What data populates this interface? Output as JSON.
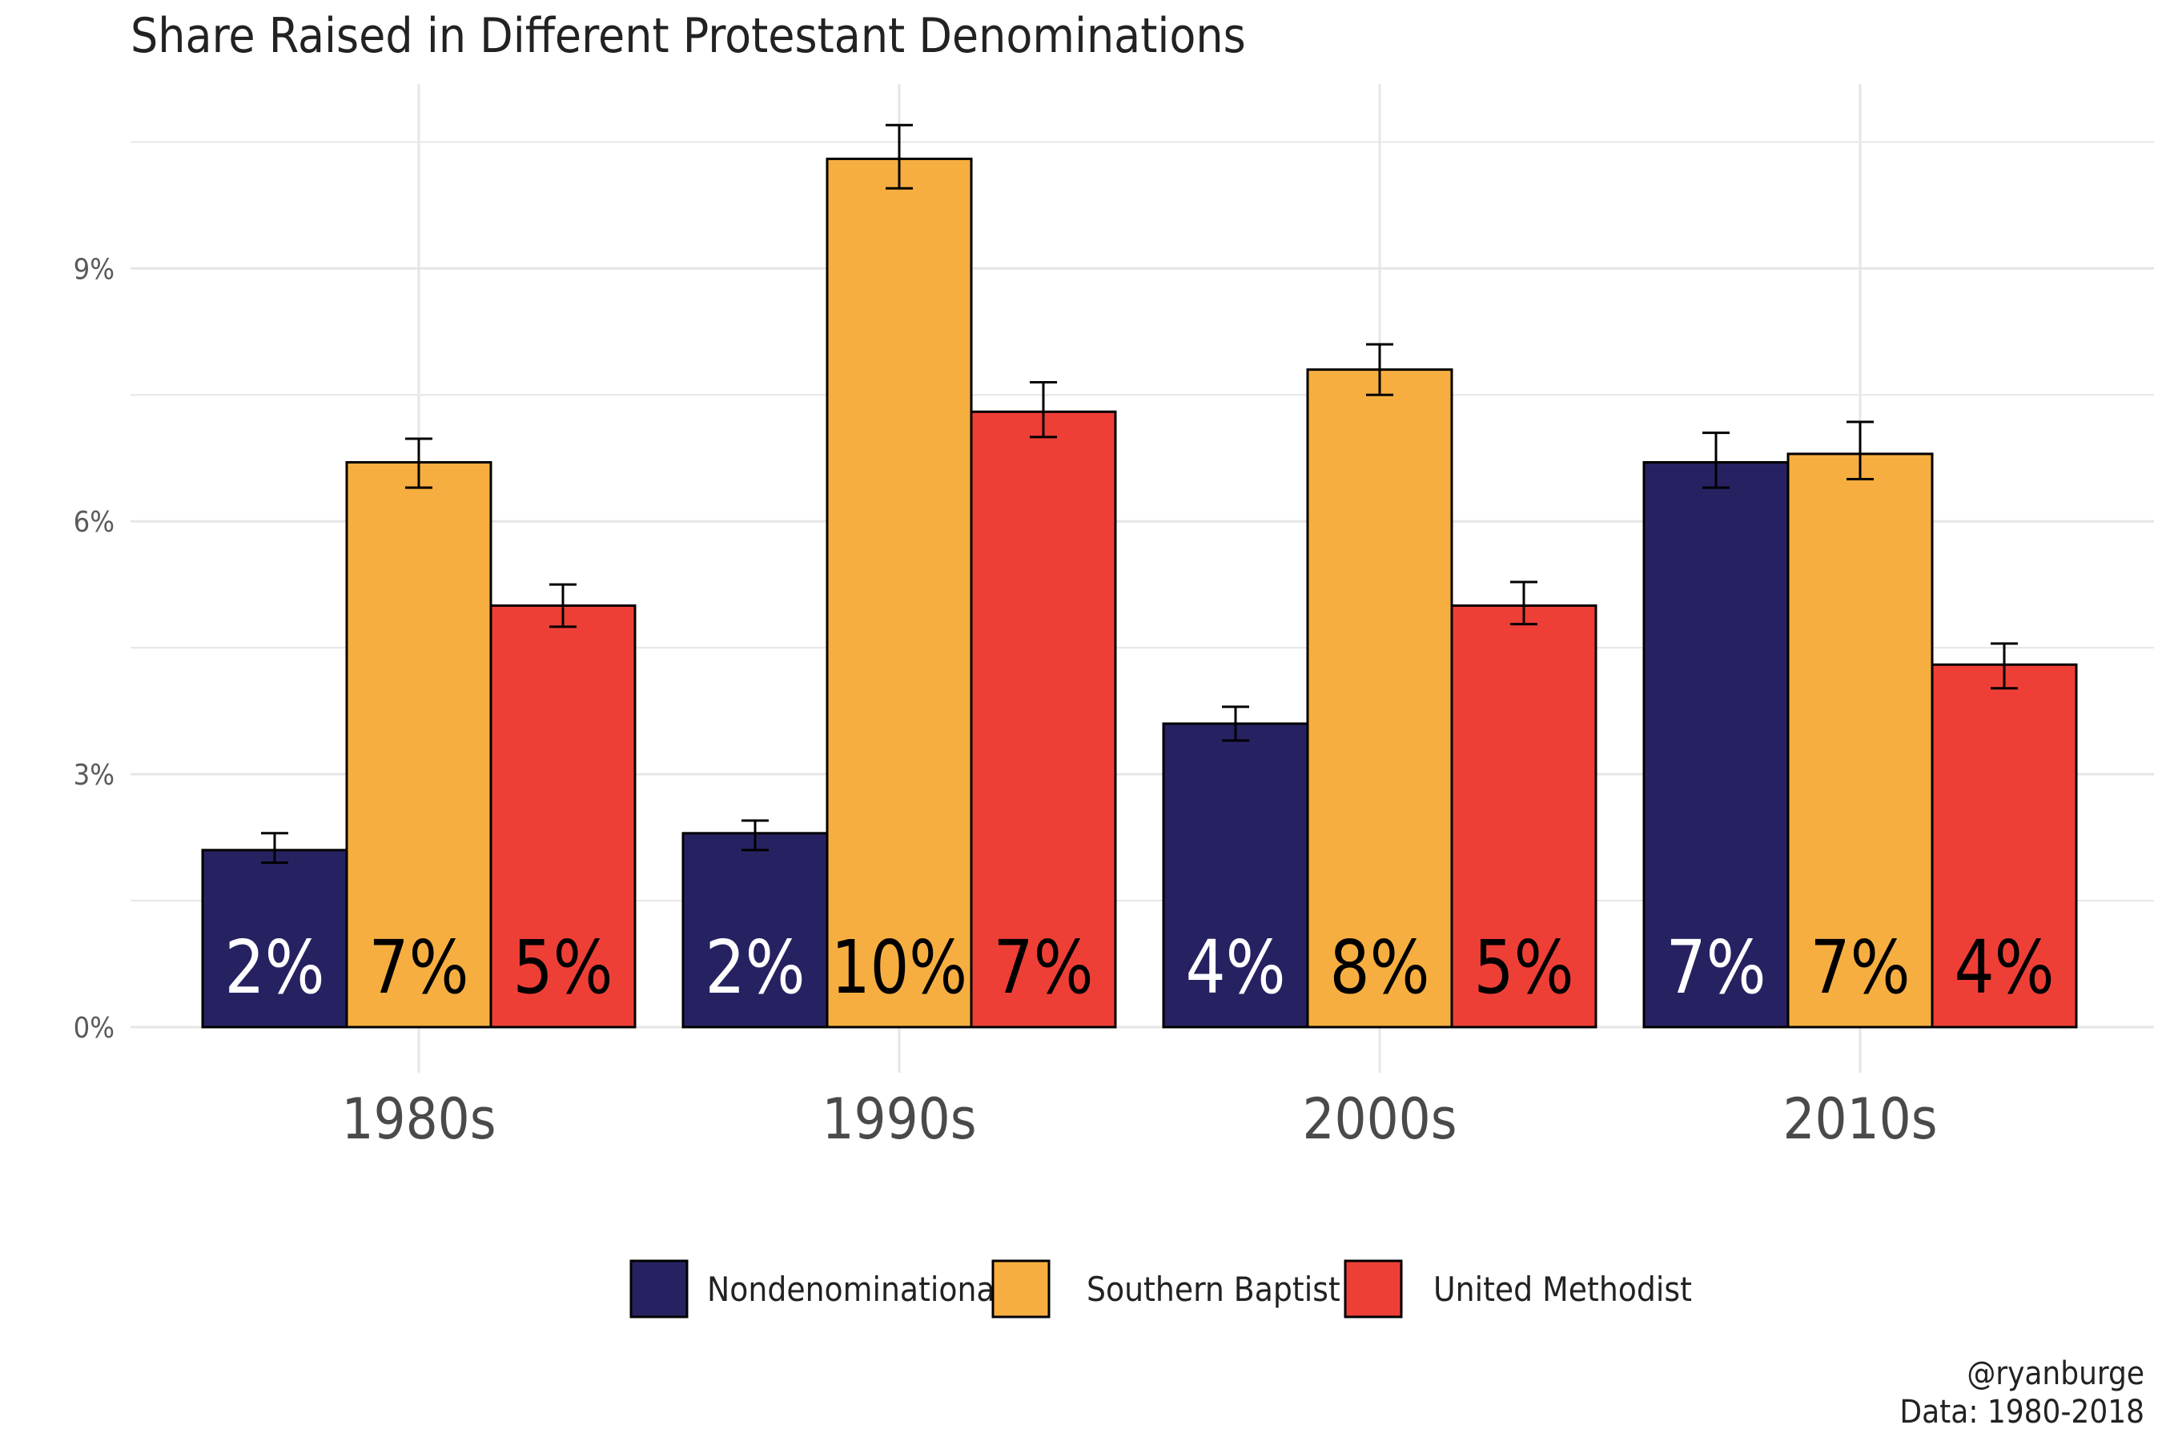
{
  "title": "Share Raised in Different Protestant Denominations",
  "caption": {
    "handle": "@ryanburge",
    "source": "Data: 1980-2018"
  },
  "colors": {
    "Nondenominational": "#262262",
    "Southern Baptist": "#f6ae40",
    "United Methodist": "#ee3f37",
    "grid": "#e6e6e6",
    "outline": "#000000"
  },
  "chart_data": {
    "type": "bar",
    "title": "Share Raised in Different Protestant Denominations",
    "xlabel": "",
    "ylabel": "",
    "categories": [
      "1980s",
      "1990s",
      "2000s",
      "2010s"
    ],
    "ylim": [
      0,
      10.5
    ],
    "yticks": [
      0,
      3,
      6,
      9
    ],
    "ytick_labels": [
      "0%",
      "3%",
      "6%",
      "9%"
    ],
    "grid": true,
    "legend_position": "bottom",
    "series": [
      {
        "name": "Nondenominational",
        "values": [
          2.1,
          2.3,
          3.6,
          6.7
        ],
        "error_low": [
          1.95,
          2.1,
          3.4,
          6.4
        ],
        "error_high": [
          2.3,
          2.45,
          3.8,
          7.05
        ],
        "labels": [
          "2%",
          "2%",
          "4%",
          "7%"
        ]
      },
      {
        "name": "Southern Baptist",
        "values": [
          6.7,
          10.3,
          7.8,
          6.8
        ],
        "error_low": [
          6.4,
          9.95,
          7.5,
          6.5
        ],
        "error_high": [
          6.98,
          10.7,
          8.1,
          7.18
        ],
        "labels": [
          "7%",
          "10%",
          "8%",
          "7%"
        ]
      },
      {
        "name": "United Methodist",
        "values": [
          5.0,
          7.3,
          5.0,
          4.3
        ],
        "error_low": [
          4.75,
          7.0,
          4.78,
          4.02
        ],
        "error_high": [
          5.25,
          7.65,
          5.28,
          4.55
        ],
        "labels": [
          "5%",
          "7%",
          "5%",
          "4%"
        ]
      }
    ]
  }
}
